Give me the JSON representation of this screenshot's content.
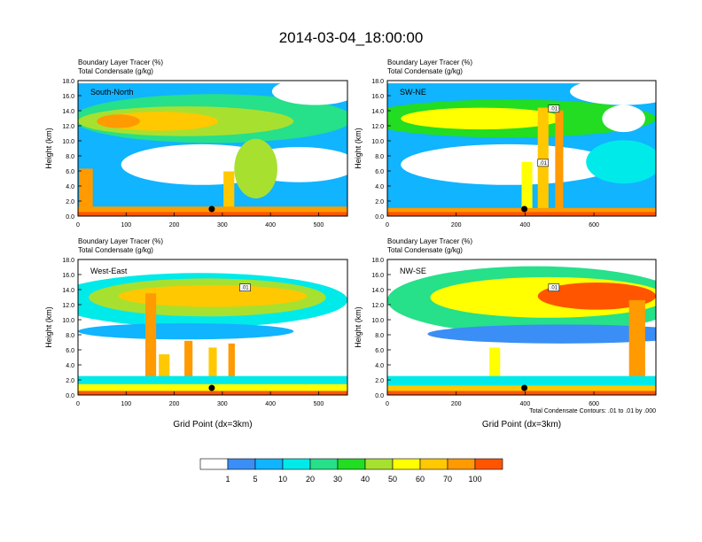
{
  "page": {
    "title": "2014-03-04_18:00:00"
  },
  "colors": [
    "#ffffff",
    "#3a8ef5",
    "#10b4ff",
    "#00eaea",
    "#26e08a",
    "#22dd22",
    "#a8e030",
    "#ffff00",
    "#ffc800",
    "#ff9a00",
    "#ff5500",
    "#ff0a0a"
  ],
  "chart_data": [
    {
      "type": "heatmap",
      "panel": "South-North",
      "title_lines": [
        "Boundary Layer Tracer   (%)",
        "Total Condensate   (g/kg)"
      ],
      "ylabel": "Height (km)",
      "xlabel": "",
      "xlim": [
        0,
        560
      ],
      "ylim": [
        0,
        18
      ],
      "xticks": [
        "0",
        "100",
        "200",
        "300",
        "400",
        "500"
      ],
      "xtick_values": [
        0,
        100,
        200,
        300,
        400,
        500
      ],
      "yticks": [
        "0.0",
        "2.0",
        "4.0",
        "6.0",
        "8.0",
        "10.0",
        "12.0",
        "14.0",
        "16.0",
        "18.0"
      ],
      "marker_x": 278,
      "contour_labels": []
    },
    {
      "type": "heatmap",
      "panel": "SW-NE",
      "title_lines": [
        "Boundary Layer Tracer   (%)",
        "Total Condensate   (g/kg)"
      ],
      "ylabel": "Height (km)",
      "xlabel": "",
      "xlim": [
        0,
        780
      ],
      "ylim": [
        0,
        18
      ],
      "xticks": [
        "0",
        "200",
        "400",
        "600"
      ],
      "xtick_values": [
        0,
        200,
        400,
        600
      ],
      "yticks": [
        "0.0",
        "2.0",
        "4.0",
        "6.0",
        "8.0",
        "10.0",
        "12.0",
        "14.0",
        "16.0",
        "18.0"
      ],
      "marker_x": 398,
      "contour_labels": [
        ".01",
        ".01"
      ]
    },
    {
      "type": "heatmap",
      "panel": "West-East",
      "title_lines": [
        "Boundary Layer Tracer   (%)",
        "Total Condensate   (g/kg)"
      ],
      "ylabel": "Height (km)",
      "xlabel": "Grid Point (dx=3km)",
      "xlim": [
        0,
        560
      ],
      "ylim": [
        0,
        18
      ],
      "xticks": [
        "0",
        "100",
        "200",
        "300",
        "400",
        "500"
      ],
      "xtick_values": [
        0,
        100,
        200,
        300,
        400,
        500
      ],
      "yticks": [
        "0.0",
        "2.0",
        "4.0",
        "6.0",
        "8.0",
        "10.0",
        "12.0",
        "14.0",
        "16.0",
        "18.0"
      ],
      "marker_x": 278,
      "contour_labels": [
        ".01"
      ]
    },
    {
      "type": "heatmap",
      "panel": "NW-SE",
      "title_lines": [
        "Boundary Layer Tracer   (%)",
        "Total Condensate   (g/kg)"
      ],
      "ylabel": "Height (km)",
      "xlabel": "Grid Point (dx=3km)",
      "xlim": [
        0,
        780
      ],
      "ylim": [
        0,
        18
      ],
      "xticks": [
        "0",
        "200",
        "400",
        "600"
      ],
      "xtick_values": [
        0,
        200,
        400,
        600
      ],
      "yticks": [
        "0.0",
        "2.0",
        "4.0",
        "6.0",
        "8.0",
        "10.0",
        "12.0",
        "14.0",
        "16.0",
        "18.0"
      ],
      "marker_x": 398,
      "contour_labels": [
        ".01"
      ],
      "footnote": "Total Condensate Contours: .01 to .01 by .000"
    }
  ],
  "colorbar": {
    "labels": [
      "1",
      "5",
      "10",
      "20",
      "30",
      "40",
      "50",
      "60",
      "70",
      "100"
    ]
  }
}
